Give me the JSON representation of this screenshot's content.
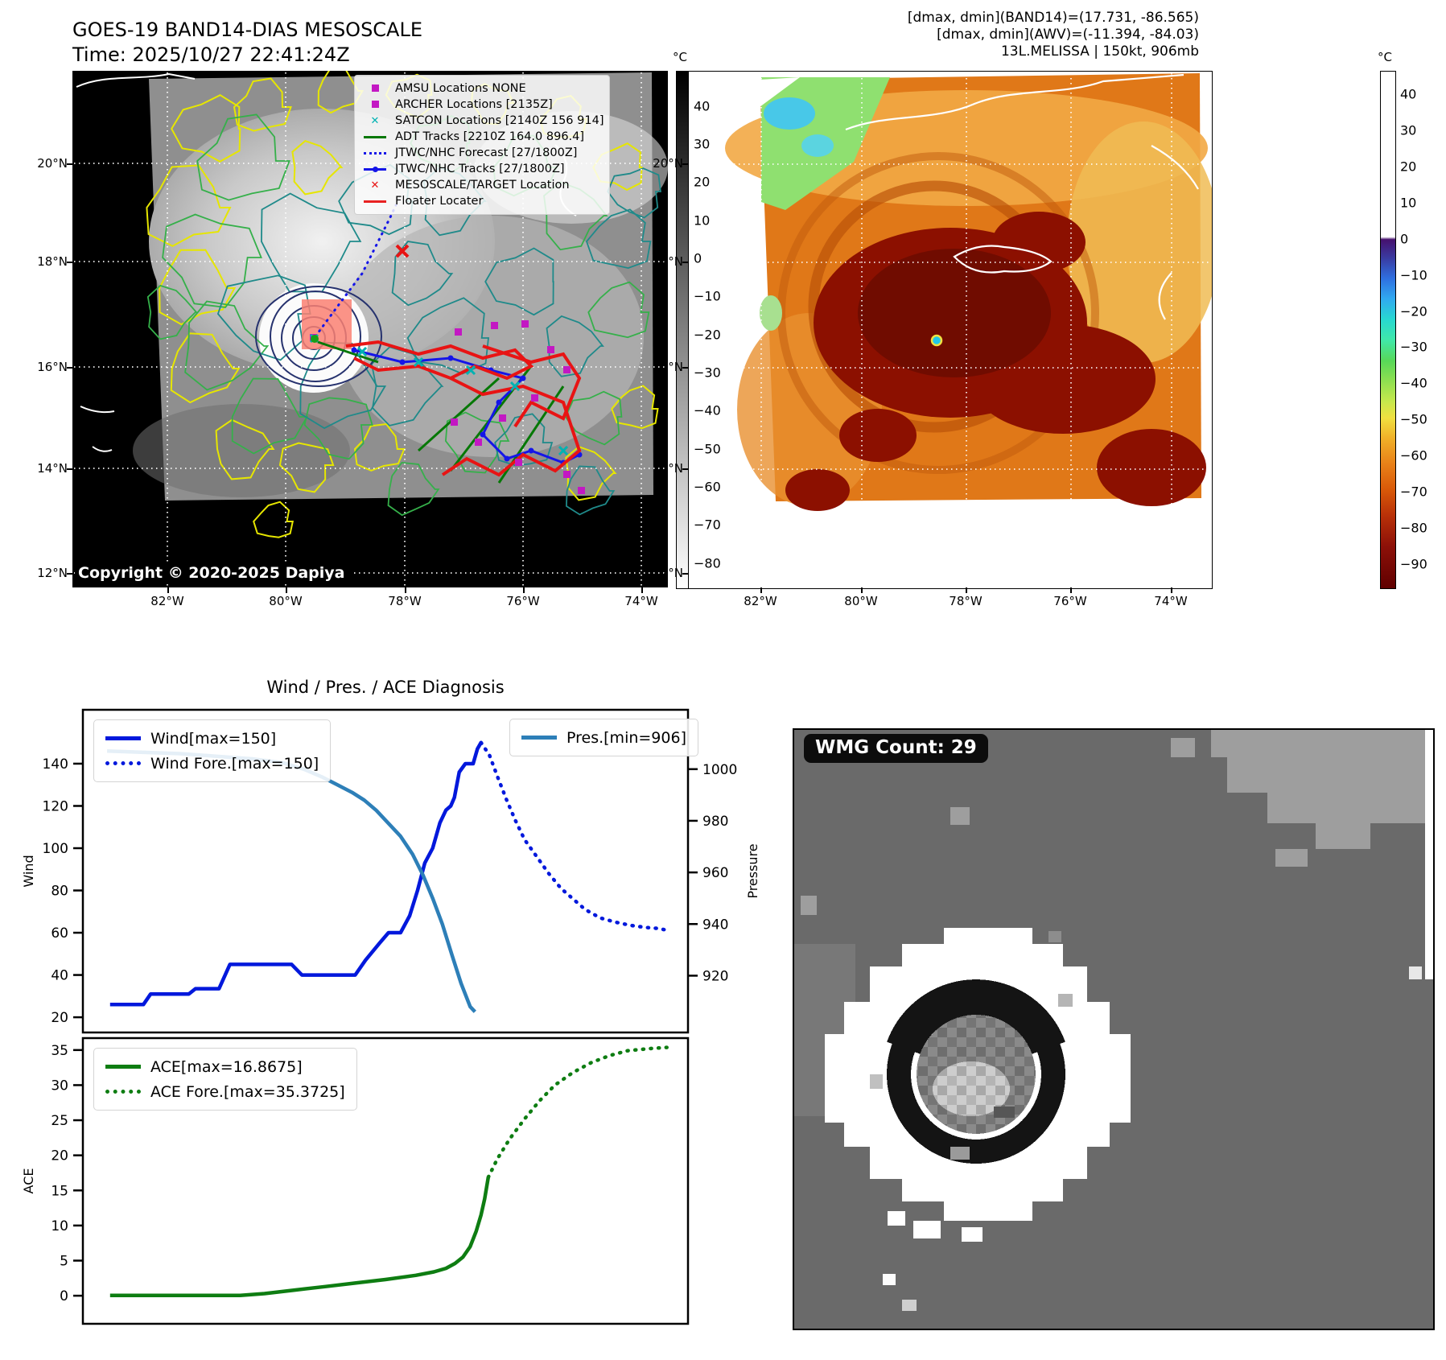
{
  "header": {
    "title": "GOES-19 BAND14-DIAS MESOSCALE",
    "time_line": "Time: 2025/10/27 22:41:24Z",
    "right_line1": "[dmax, dmin](BAND14)=(17.731, -86.565)",
    "right_line2": "[dmax, dmin](AWV)=(-11.394, -84.03)",
    "right_line3": "13L.MELISSA | 150kt, 906mb"
  },
  "band14_map": {
    "legend": [
      {
        "label": "AMSU Locations NONE",
        "marker": "square",
        "color": "#c318c3"
      },
      {
        "label": "ARCHER Locations [2135Z]",
        "marker": "square",
        "color": "#c318c3"
      },
      {
        "label": "SATCON Locations [2140Z 156 914]",
        "marker": "x",
        "color": "#00b2b2"
      },
      {
        "label": "ADT Tracks [2210Z 164.0 896.4]",
        "marker": "line",
        "color": "#067806"
      },
      {
        "label": "JTWC/NHC Forecast [27/1800Z]",
        "marker": "dotted",
        "color": "#1515e8"
      },
      {
        "label": "JTWC/NHC Tracks [27/1800Z]",
        "marker": "line-dot",
        "color": "#1515e8"
      },
      {
        "label": "MESOSCALE/TARGET Location",
        "marker": "x",
        "color": "#e81414"
      },
      {
        "label": "Floater Locater",
        "marker": "line",
        "color": "#e82222"
      }
    ],
    "copyright": "Copyright © 2020-2025 Dapiya",
    "lat_ticks": [
      "20°N",
      "18°N",
      "16°N",
      "14°N",
      "12°N"
    ],
    "lon_ticks": [
      "82°W",
      "80°W",
      "78°W",
      "76°W",
      "74°W"
    ],
    "colorbar": {
      "unit": "°C",
      "ticks": [
        "40",
        "30",
        "20",
        "10",
        "0",
        "−10",
        "−20",
        "−30",
        "−40",
        "−50",
        "−60",
        "−70",
        "−80"
      ]
    }
  },
  "awv_map": {
    "lat_ticks": [
      "20°N",
      "18°N",
      "16°N",
      "14°N",
      "12°N"
    ],
    "lon_ticks": [
      "82°W",
      "80°W",
      "78°W",
      "76°W",
      "74°W"
    ],
    "colorbar": {
      "unit": "°C",
      "ticks": [
        "40",
        "30",
        "20",
        "10",
        "0",
        "−10",
        "−20",
        "−30",
        "−40",
        "−50",
        "−60",
        "−70",
        "−80",
        "−90"
      ]
    }
  },
  "diagnosis_title": "Wind / Pres. / ACE Diagnosis",
  "chart_data": [
    {
      "type": "line",
      "title": "Wind / Pres. / ACE Diagnosis",
      "left_axis": {
        "label": "Wind",
        "ticks": [
          20,
          40,
          60,
          80,
          100,
          120,
          140
        ],
        "range": [
          12.8,
          165.5
        ]
      },
      "right_axis": {
        "label": "Pressure",
        "ticks": [
          920,
          940,
          960,
          980,
          1000
        ],
        "range": [
          898.0,
          1023.0
        ]
      },
      "series": [
        {
          "name": "Wind[max=150]",
          "axis": "left",
          "style": "solid",
          "color": "#0018dc",
          "points": [
            [
              0.045,
              26
            ],
            [
              0.1,
              26
            ],
            [
              0.112,
              31
            ],
            [
              0.175,
              31
            ],
            [
              0.186,
              33.5
            ],
            [
              0.225,
              33.5
            ],
            [
              0.243,
              45
            ],
            [
              0.345,
              45
            ],
            [
              0.362,
              40
            ],
            [
              0.45,
              40
            ],
            [
              0.467,
              47
            ],
            [
              0.49,
              55
            ],
            [
              0.505,
              60
            ],
            [
              0.525,
              60
            ],
            [
              0.54,
              68
            ],
            [
              0.553,
              80
            ],
            [
              0.565,
              93
            ],
            [
              0.578,
              100
            ],
            [
              0.59,
              112
            ],
            [
              0.6,
              118
            ],
            [
              0.608,
              120
            ],
            [
              0.614,
              124
            ],
            [
              0.622,
              136
            ],
            [
              0.632,
              140
            ],
            [
              0.645,
              140
            ],
            [
              0.652,
              147
            ],
            [
              0.658,
              150
            ]
          ]
        },
        {
          "name": "Wind Fore.[max=150]",
          "axis": "left",
          "style": "dotted",
          "color": "#0018dc",
          "points": [
            [
              0.658,
              150
            ],
            [
              0.672,
              144
            ],
            [
              0.685,
              134
            ],
            [
              0.7,
              123
            ],
            [
              0.715,
              113
            ],
            [
              0.73,
              104
            ],
            [
              0.75,
              96
            ],
            [
              0.77,
              88
            ],
            [
              0.79,
              81
            ],
            [
              0.81,
              76
            ],
            [
              0.83,
              71
            ],
            [
              0.855,
              67
            ],
            [
              0.88,
              65
            ],
            [
              0.905,
              63.5
            ],
            [
              0.93,
              62.5
            ],
            [
              0.952,
              62
            ],
            [
              0.968,
              61
            ]
          ]
        },
        {
          "name": "Pres.[min=906]",
          "axis": "right",
          "style": "solid",
          "color": "#2d7fb8",
          "points": [
            [
              0.04,
              1007
            ],
            [
              0.1,
              1006.5
            ],
            [
              0.16,
              1006
            ],
            [
              0.22,
              1005
            ],
            [
              0.28,
              1004
            ],
            [
              0.33,
              1002.5
            ],
            [
              0.365,
              1000
            ],
            [
              0.395,
              997
            ],
            [
              0.42,
              994
            ],
            [
              0.445,
              991
            ],
            [
              0.465,
              988
            ],
            [
              0.485,
              984
            ],
            [
              0.505,
              979
            ],
            [
              0.525,
              974
            ],
            [
              0.545,
              967
            ],
            [
              0.562,
              959
            ],
            [
              0.578,
              950
            ],
            [
              0.594,
              940
            ],
            [
              0.61,
              928
            ],
            [
              0.625,
              917
            ],
            [
              0.64,
              908
            ],
            [
              0.648,
              906
            ]
          ]
        }
      ]
    },
    {
      "type": "line",
      "left_axis": {
        "label": "ACE",
        "ticks": [
          0,
          5,
          10,
          15,
          20,
          25,
          30,
          35
        ],
        "range": [
          -4.0,
          36.7
        ]
      },
      "series": [
        {
          "name": "ACE[max=16.8675]",
          "axis": "left",
          "style": "solid",
          "color": "#0e7d12",
          "points": [
            [
              0.045,
              0.05
            ],
            [
              0.26,
              0.05
            ],
            [
              0.3,
              0.3
            ],
            [
              0.35,
              0.8
            ],
            [
              0.4,
              1.3
            ],
            [
              0.45,
              1.8
            ],
            [
              0.5,
              2.3
            ],
            [
              0.55,
              2.9
            ],
            [
              0.58,
              3.4
            ],
            [
              0.6,
              3.9
            ],
            [
              0.615,
              4.6
            ],
            [
              0.628,
              5.5
            ],
            [
              0.64,
              7.0
            ],
            [
              0.65,
              9.2
            ],
            [
              0.658,
              11.5
            ],
            [
              0.664,
              13.8
            ],
            [
              0.67,
              16.87
            ]
          ]
        },
        {
          "name": "ACE Fore.[max=35.3725]",
          "axis": "left",
          "style": "dotted",
          "color": "#0e7d12",
          "points": [
            [
              0.67,
              16.87
            ],
            [
              0.685,
              19.5
            ],
            [
              0.705,
              22.3
            ],
            [
              0.73,
              25.2
            ],
            [
              0.755,
              27.8
            ],
            [
              0.78,
              30.0
            ],
            [
              0.81,
              31.8
            ],
            [
              0.84,
              33.2
            ],
            [
              0.87,
              34.2
            ],
            [
              0.9,
              34.9
            ],
            [
              0.935,
              35.2
            ],
            [
              0.965,
              35.37
            ]
          ]
        }
      ]
    }
  ],
  "wmg": {
    "badge": "WMG Count: 29"
  }
}
